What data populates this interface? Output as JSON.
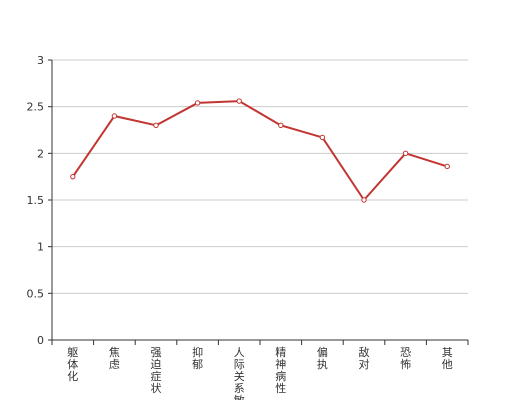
{
  "chart_data": {
    "type": "line",
    "categories": [
      "躯体化",
      "焦虑",
      "强迫症状",
      "抑郁",
      "人际关系敏感",
      "精神病性",
      "偏执",
      "敌对",
      "恐怖",
      "其他"
    ],
    "series": [
      {
        "values": [
          1.75,
          2.4,
          2.3,
          2.54,
          2.56,
          2.3,
          2.17,
          1.5,
          2.0,
          1.86
        ]
      }
    ],
    "ylim": [
      0,
      3
    ],
    "yticks": [
      0,
      0.5,
      1,
      1.5,
      2,
      2.5,
      3
    ],
    "ytick_labels": [
      "0",
      "0.5",
      "1",
      "1.5",
      "2",
      "2.5",
      "3"
    ],
    "grid": true,
    "colors": {
      "line": "#c23531",
      "grid": "#cccccc",
      "axis": "#333333",
      "text": "#333333"
    }
  }
}
